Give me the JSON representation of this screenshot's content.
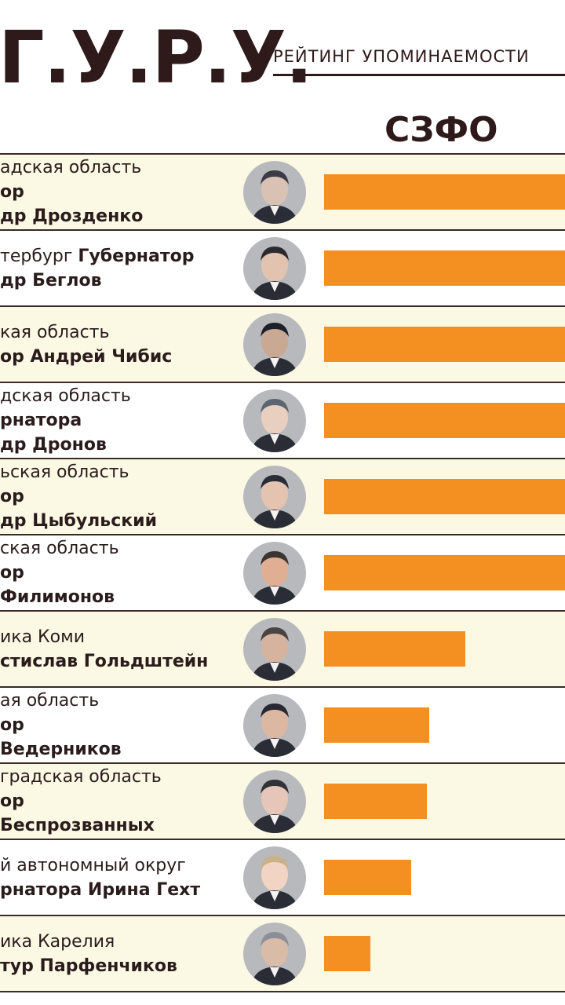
{
  "header": {
    "logo": "Г.У.Р.У.",
    "subtitle": "РЕЙТИНГ УПОМИНАЕМОСТИ",
    "region": "СЗФО"
  },
  "colors": {
    "bar": "#f39021",
    "text": "#2e1a1a",
    "row_shade": "#fbf8e3"
  },
  "rows": [
    {
      "lines": [
        {
          "t": "адская область",
          "b": false
        },
        {
          "t": "ор",
          "b": true
        },
        {
          "t": "др Дрозденко",
          "b": true
        }
      ],
      "avatar": "person-photo-1"
    },
    {
      "lines": [
        {
          "t": "тербург Губернатор",
          "b": false,
          "mixed": true,
          "n": "тербург ",
          "g": "Губернатор"
        },
        {
          "t": "др Беглов",
          "b": true
        }
      ],
      "avatar": "person-photo-2"
    },
    {
      "lines": [
        {
          "t": "кая область",
          "b": false
        },
        {
          "t": "ор Андрей Чибис",
          "b": true
        }
      ],
      "avatar": "person-photo-3"
    },
    {
      "lines": [
        {
          "t": "дская область",
          "b": false
        },
        {
          "t": "рнатора",
          "b": true
        },
        {
          "t": "др Дронов",
          "b": true
        }
      ],
      "avatar": "person-photo-4"
    },
    {
      "lines": [
        {
          "t": "ьская область",
          "b": false
        },
        {
          "t": "ор",
          "b": true
        },
        {
          "t": "др Цыбульский",
          "b": true
        }
      ],
      "avatar": "person-photo-5"
    },
    {
      "lines": [
        {
          "t": "ская область",
          "b": false
        },
        {
          "t": "ор",
          "b": true
        },
        {
          "t": "Филимонов",
          "b": true
        }
      ],
      "avatar": "person-photo-6"
    },
    {
      "lines": [
        {
          "t": "ика Коми",
          "b": false
        },
        {
          "t": "стислав Гольдштейн",
          "b": true
        }
      ],
      "avatar": "person-photo-7"
    },
    {
      "lines": [
        {
          "t": "ая область",
          "b": false
        },
        {
          "t": "ор",
          "b": true
        },
        {
          "t": "Ведерников",
          "b": true
        }
      ],
      "avatar": "person-photo-8"
    },
    {
      "lines": [
        {
          "t": "градская область",
          "b": false
        },
        {
          "t": "ор",
          "b": true
        },
        {
          "t": "Беспрозванных",
          "b": true
        }
      ],
      "avatar": "person-photo-9"
    },
    {
      "lines": [
        {
          "t": "й автономный округ",
          "b": false
        },
        {
          "t": "рнатора Ирина Гехт",
          "b": true
        }
      ],
      "avatar": "person-photo-10"
    },
    {
      "lines": [
        {
          "t": "ика Карелия",
          "b": false
        },
        {
          "t": "тур Парфенчиков",
          "b": true
        }
      ],
      "avatar": "person-photo-11"
    }
  ],
  "chart_data": {
    "type": "bar",
    "orientation": "horizontal",
    "title": "СЗФО",
    "categories": [
      "адская область ор др Дрозденко",
      "тербург Губернатор др Беглов",
      "кая область ор Андрей Чибис",
      "дская область рнатора др Дронов",
      "ьская область ор др Цыбульский",
      "ская область ор Филимонов",
      "ика Коми стислав Гольдштейн",
      "ая область ор Ведерников",
      "градская область ор Беспрозванных",
      "й автономный округ рнатора Ирина Гехт",
      "ика Карелия тур Парфенчиков"
    ],
    "values": [
      100,
      100,
      100,
      100,
      100,
      100,
      55,
      41,
      40,
      34,
      18
    ],
    "value_unit": "relative (bars truncated at image edge)",
    "xlim": [
      0,
      100
    ],
    "grid": false,
    "legend": "none"
  }
}
